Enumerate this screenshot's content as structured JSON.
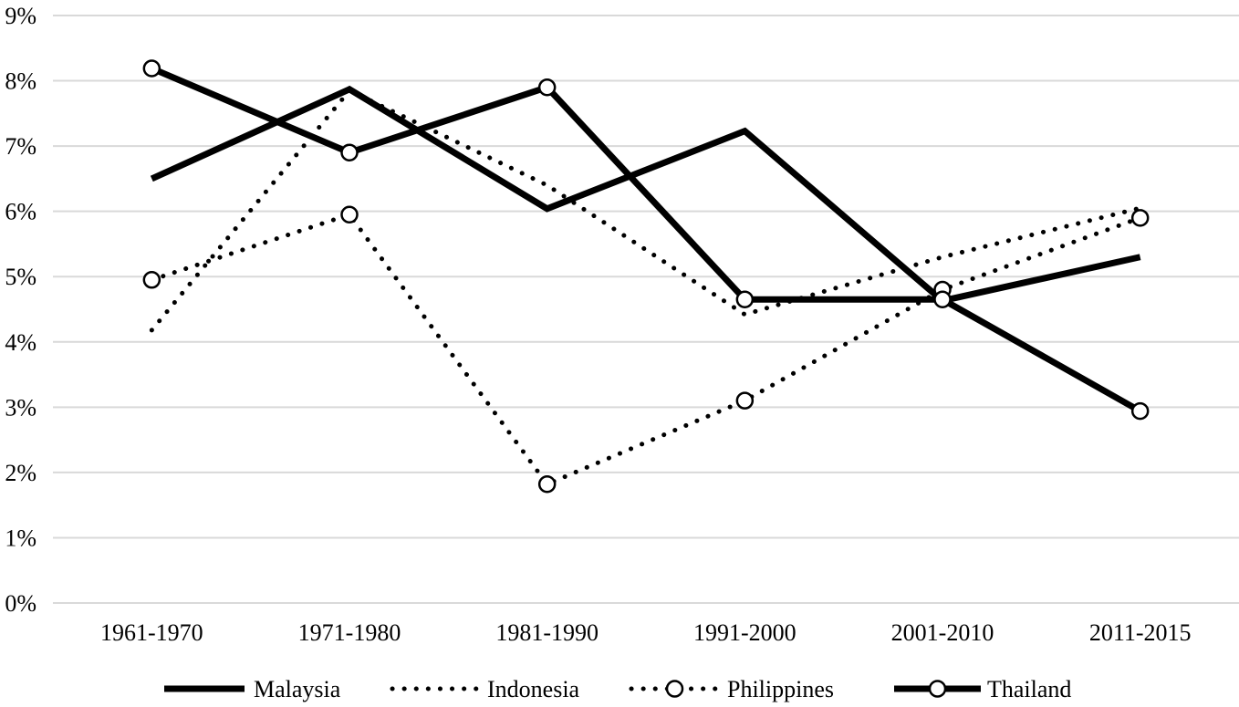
{
  "chart_data": {
    "type": "line",
    "title": "",
    "xlabel": "",
    "ylabel": "",
    "categories": [
      "1961-1970",
      "1971-1980",
      "1981-1990",
      "1991-2000",
      "2001-2010",
      "2011-2015"
    ],
    "ylim": [
      0,
      9
    ],
    "yticks": [
      {
        "value": 0,
        "label": "0%"
      },
      {
        "value": 1,
        "label": "1%"
      },
      {
        "value": 2,
        "label": "2%"
      },
      {
        "value": 3,
        "label": "3%"
      },
      {
        "value": 4,
        "label": "4%"
      },
      {
        "value": 5,
        "label": "5%"
      },
      {
        "value": 6,
        "label": "6%"
      },
      {
        "value": 7,
        "label": "7%"
      },
      {
        "value": 8,
        "label": "8%"
      },
      {
        "value": 9,
        "label": "9%"
      }
    ],
    "grid": "horizontal",
    "legend_position": "bottom",
    "series": [
      {
        "name": "Malaysia",
        "values": [
          6.5,
          7.87,
          6.04,
          7.23,
          4.63,
          5.3
        ],
        "style": "solid",
        "marker": "none",
        "color": "#000000"
      },
      {
        "name": "Indonesia",
        "values": [
          4.18,
          7.85,
          6.4,
          4.42,
          5.3,
          6.05
        ],
        "style": "dotted",
        "marker": "none",
        "color": "#000000"
      },
      {
        "name": "Philippines",
        "values": [
          4.95,
          5.95,
          1.82,
          3.1,
          4.8,
          5.9
        ],
        "style": "dotted",
        "marker": "circle",
        "color": "#000000"
      },
      {
        "name": "Thailand",
        "values": [
          8.19,
          6.9,
          7.9,
          4.65,
          4.65,
          2.94
        ],
        "style": "solid",
        "marker": "circle",
        "color": "#000000"
      }
    ]
  }
}
